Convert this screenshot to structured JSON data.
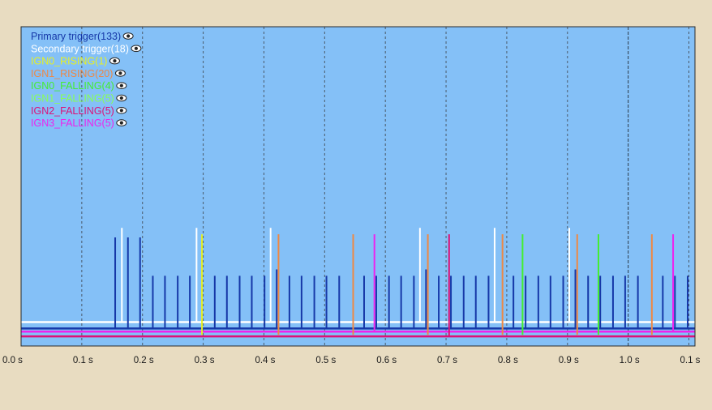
{
  "colors": {
    "page_background": "#e8dcc1",
    "plot_background": "#84c0f7",
    "plot_border": "#2a2a2a",
    "grid": "#4a5a6a",
    "grid_major": "#2a3a4a"
  },
  "chart_data": {
    "type": "timing",
    "xlim": [
      0.0,
      1.11
    ],
    "grid": "dashed vertical",
    "legend_position": "top-left",
    "ticks": [
      {
        "value": 0.0,
        "label": "0.0 s",
        "major": false
      },
      {
        "value": 0.1,
        "label": "0.1 s",
        "major": false
      },
      {
        "value": 0.2,
        "label": "0.2 s",
        "major": false
      },
      {
        "value": 0.3,
        "label": "0.3 s",
        "major": false
      },
      {
        "value": 0.4,
        "label": "0.4 s",
        "major": false
      },
      {
        "value": 0.5,
        "label": "0.5 s",
        "major": false
      },
      {
        "value": 0.6,
        "label": "0.6 s",
        "major": false
      },
      {
        "value": 0.7,
        "label": "0.7 s",
        "major": false
      },
      {
        "value": 0.8,
        "label": "0.8 s",
        "major": false
      },
      {
        "value": 0.9,
        "label": "0.9 s",
        "major": false
      },
      {
        "value": 1.0,
        "label": "1.0 s",
        "major": true
      },
      {
        "value": 1.1,
        "label": "0.1 s",
        "major": false
      }
    ],
    "legend_icon": "eye-icon",
    "series": [
      {
        "name": "Primary trigger(133)",
        "color": "#1638a8",
        "baseline": 0.055,
        "events": [
          {
            "t": 0.155,
            "h": 0.34
          },
          {
            "t": 0.176,
            "h": 0.34
          },
          {
            "t": 0.196,
            "h": 0.34
          },
          {
            "t": 0.217,
            "h": 0.22
          },
          {
            "t": 0.237,
            "h": 0.22
          },
          {
            "t": 0.258,
            "h": 0.22
          },
          {
            "t": 0.278,
            "h": 0.22
          },
          {
            "t": 0.319,
            "h": 0.22
          },
          {
            "t": 0.339,
            "h": 0.22
          },
          {
            "t": 0.36,
            "h": 0.22
          },
          {
            "t": 0.38,
            "h": 0.22
          },
          {
            "t": 0.401,
            "h": 0.22
          },
          {
            "t": 0.421,
            "h": 0.24
          },
          {
            "t": 0.442,
            "h": 0.22
          },
          {
            "t": 0.462,
            "h": 0.22
          },
          {
            "t": 0.483,
            "h": 0.22
          },
          {
            "t": 0.503,
            "h": 0.22
          },
          {
            "t": 0.524,
            "h": 0.22
          },
          {
            "t": 0.565,
            "h": 0.22
          },
          {
            "t": 0.585,
            "h": 0.22
          },
          {
            "t": 0.606,
            "h": 0.22
          },
          {
            "t": 0.626,
            "h": 0.22
          },
          {
            "t": 0.647,
            "h": 0.22
          },
          {
            "t": 0.667,
            "h": 0.24
          },
          {
            "t": 0.688,
            "h": 0.22
          },
          {
            "t": 0.708,
            "h": 0.22
          },
          {
            "t": 0.729,
            "h": 0.22
          },
          {
            "t": 0.749,
            "h": 0.22
          },
          {
            "t": 0.77,
            "h": 0.22
          },
          {
            "t": 0.811,
            "h": 0.22
          },
          {
            "t": 0.831,
            "h": 0.22
          },
          {
            "t": 0.852,
            "h": 0.22
          },
          {
            "t": 0.872,
            "h": 0.22
          },
          {
            "t": 0.893,
            "h": 0.22
          },
          {
            "t": 0.913,
            "h": 0.24
          },
          {
            "t": 0.934,
            "h": 0.22
          },
          {
            "t": 0.954,
            "h": 0.22
          },
          {
            "t": 0.975,
            "h": 0.22
          },
          {
            "t": 0.995,
            "h": 0.22
          },
          {
            "t": 1.016,
            "h": 0.22
          },
          {
            "t": 1.057,
            "h": 0.22
          },
          {
            "t": 1.077,
            "h": 0.22
          },
          {
            "t": 1.098,
            "h": 0.22
          }
        ]
      },
      {
        "name": "Secondary trigger(18)",
        "color": "#ffffff",
        "baseline": 0.075,
        "events": [
          {
            "t": 0.166,
            "h": 0.37
          },
          {
            "t": 0.289,
            "h": 0.37
          },
          {
            "t": 0.411,
            "h": 0.37
          },
          {
            "t": 0.657,
            "h": 0.37
          },
          {
            "t": 0.78,
            "h": 0.37
          },
          {
            "t": 0.903,
            "h": 0.37
          }
        ]
      },
      {
        "name": "IGN0_RISING(1)",
        "color": "#e8f020",
        "baseline": null,
        "events": [
          {
            "t": 0.298,
            "h": 0.35
          }
        ]
      },
      {
        "name": "IGN1_RISING(20)",
        "color": "#ee8844",
        "baseline": null,
        "events": [
          {
            "t": 0.424,
            "h": 0.35
          },
          {
            "t": 0.547,
            "h": 0.35
          },
          {
            "t": 0.67,
            "h": 0.35
          },
          {
            "t": 0.793,
            "h": 0.35
          },
          {
            "t": 0.916,
            "h": 0.35
          },
          {
            "t": 1.039,
            "h": 0.35
          }
        ]
      },
      {
        "name": "IGN0_FALLING(4)",
        "color": "#44ee30",
        "baseline": null,
        "events": [
          {
            "t": 0.826,
            "h": 0.35
          },
          {
            "t": 0.951,
            "h": 0.35
          }
        ]
      },
      {
        "name": "IGN1_FALLING(5)",
        "color": "#88ff55",
        "baseline": null,
        "events": []
      },
      {
        "name": "IGN2_FALLING(5)",
        "color": "#dd1177",
        "baseline": 0.03,
        "events": [
          {
            "t": 0.705,
            "h": 0.35
          }
        ]
      },
      {
        "name": "IGN3_FALLING(5)",
        "color": "#ee22ee",
        "baseline": 0.045,
        "events": [
          {
            "t": 0.582,
            "h": 0.35
          },
          {
            "t": 1.074,
            "h": 0.35
          }
        ]
      }
    ]
  }
}
